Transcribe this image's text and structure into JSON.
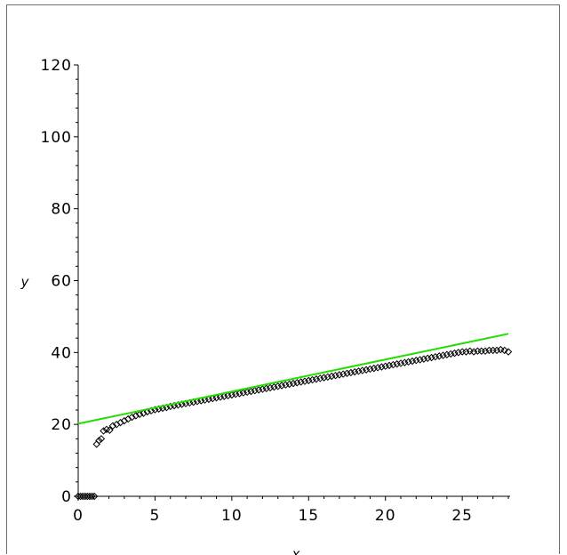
{
  "chart_data": {
    "type": "scatter",
    "title": "",
    "xlabel": "x",
    "ylabel": "y",
    "xlim": [
      0,
      28
    ],
    "ylim": [
      0,
      120
    ],
    "x_ticks": [
      0,
      5,
      10,
      15,
      20,
      25
    ],
    "y_ticks": [
      0,
      20,
      40,
      60,
      80,
      100,
      120
    ],
    "x_tick_labels": [
      "0",
      "5",
      "10",
      "15",
      "20",
      "25"
    ],
    "y_tick_labels": [
      "0",
      "20",
      "40",
      "60",
      "80",
      "100",
      "120"
    ],
    "grid": false,
    "legend": "none",
    "series": [
      {
        "kind": "points",
        "marker": "diamond-open",
        "color": "#000000",
        "x": [
          0.0,
          0.15,
          0.3,
          0.45,
          0.6,
          0.75,
          0.9,
          1.05,
          1.2,
          1.35,
          1.5,
          1.65,
          1.85,
          2.05,
          2.25,
          2.5,
          2.75,
          3.0,
          3.25,
          3.5,
          3.75,
          4.0,
          4.25,
          4.5,
          4.75,
          5.0,
          5.25,
          5.5,
          5.75,
          6.0,
          6.25,
          6.5,
          6.75,
          7.0,
          7.25,
          7.5,
          7.75,
          8.0,
          8.25,
          8.5,
          8.75,
          9.0,
          9.25,
          9.5,
          9.75,
          10.0,
          10.25,
          10.5,
          10.75,
          11.0,
          11.25,
          11.5,
          11.75,
          12.0,
          12.25,
          12.5,
          12.75,
          13.0,
          13.25,
          13.5,
          13.75,
          14.0,
          14.25,
          14.5,
          14.75,
          15.0,
          15.25,
          15.5,
          15.75,
          16.0,
          16.25,
          16.5,
          16.75,
          17.0,
          17.25,
          17.5,
          17.75,
          18.0,
          18.25,
          18.5,
          18.75,
          19.0,
          19.25,
          19.5,
          19.75,
          20.0,
          20.25,
          20.5,
          20.75,
          21.0,
          21.25,
          21.5,
          21.75,
          22.0,
          22.25,
          22.5,
          22.75,
          23.0,
          23.25,
          23.5,
          23.75,
          24.0,
          24.25,
          24.5,
          24.75,
          25.0,
          25.25,
          25.5,
          25.75,
          26.0,
          26.25,
          26.5,
          26.75,
          27.0,
          27.25,
          27.5,
          27.75,
          28.0
        ],
        "y": [
          0.0,
          0.0,
          0.0,
          0.0,
          0.0,
          0.0,
          0.0,
          0.0,
          14.5,
          15.5,
          16.0,
          18.2,
          18.6,
          18.4,
          19.6,
          20.0,
          20.5,
          21.0,
          21.5,
          22.0,
          22.4,
          22.8,
          23.1,
          23.5,
          23.8,
          24.1,
          24.3,
          24.5,
          24.7,
          25.0,
          25.2,
          25.4,
          25.6,
          25.8,
          26.0,
          26.2,
          26.4,
          26.6,
          26.8,
          27.0,
          27.2,
          27.4,
          27.6,
          27.8,
          28.0,
          28.2,
          28.4,
          28.6,
          28.8,
          29.0,
          29.2,
          29.4,
          29.6,
          29.8,
          30.0,
          30.2,
          30.4,
          30.6,
          30.8,
          31.0,
          31.2,
          31.4,
          31.6,
          31.8,
          32.0,
          32.2,
          32.4,
          32.6,
          32.8,
          33.0,
          33.2,
          33.4,
          33.6,
          33.8,
          34.0,
          34.2,
          34.4,
          34.6,
          34.8,
          35.0,
          35.2,
          35.4,
          35.6,
          35.8,
          36.0,
          36.2,
          36.4,
          36.6,
          36.8,
          37.0,
          37.2,
          37.4,
          37.6,
          37.8,
          38.0,
          38.2,
          38.4,
          38.6,
          38.8,
          39.0,
          39.2,
          39.4,
          39.6,
          39.8,
          40.0,
          40.2,
          40.2,
          40.4,
          40.2,
          40.4,
          40.4,
          40.4,
          40.6,
          40.6,
          40.6,
          40.8,
          40.6,
          40.2
        ]
      },
      {
        "kind": "line",
        "color": "#22dd00",
        "x": [
          0,
          28
        ],
        "y": [
          20.2,
          45.2
        ]
      }
    ]
  }
}
